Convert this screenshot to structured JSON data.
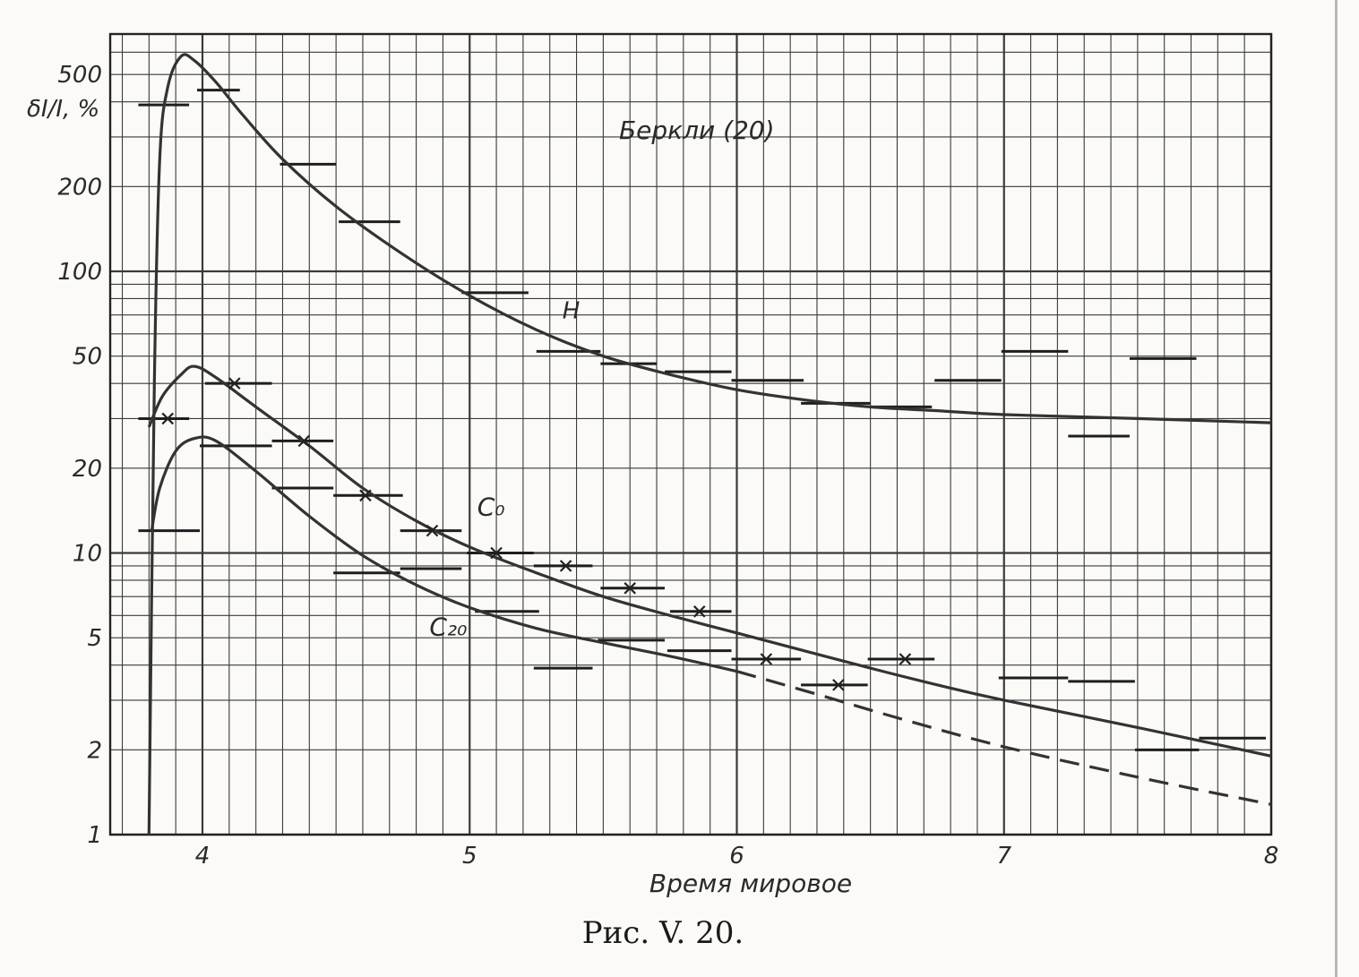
{
  "caption": "Рис. V. 20.",
  "chart_data": {
    "type": "line",
    "title": "",
    "xlabel": "Время мировое",
    "ylabel": "δI/I, %",
    "yscale": "log",
    "xlim": [
      3.68,
      8.0
    ],
    "ylim": [
      1,
      700
    ],
    "grid": true,
    "x_ticks": [
      {
        "v": 4,
        "label": "4"
      },
      {
        "v": 5,
        "label": "5"
      },
      {
        "v": 6,
        "label": "6"
      },
      {
        "v": 7,
        "label": "7"
      },
      {
        "v": 8,
        "label": "8"
      }
    ],
    "y_ticks": [
      {
        "v": 1,
        "label": "1"
      },
      {
        "v": 2,
        "label": "2"
      },
      {
        "v": 5,
        "label": "5"
      },
      {
        "v": 10,
        "label": "10"
      },
      {
        "v": 20,
        "label": "20"
      },
      {
        "v": 50,
        "label": "50"
      },
      {
        "v": 100,
        "label": "100"
      },
      {
        "v": 200,
        "label": "200"
      },
      {
        "v": 500,
        "label": "500"
      }
    ],
    "annotations": [
      {
        "text": "Беркли (20)",
        "x": 5.85,
        "y": 295
      },
      {
        "text": "H",
        "x": 5.38,
        "y": 68
      }
    ],
    "series": [
      {
        "name": "H",
        "label": "H",
        "style": "solid",
        "points": [
          [
            3.8,
            1.0
          ],
          [
            3.82,
            40
          ],
          [
            3.84,
            250
          ],
          [
            3.87,
            450
          ],
          [
            3.92,
            580
          ],
          [
            3.97,
            560
          ],
          [
            4.05,
            470
          ],
          [
            4.15,
            360
          ],
          [
            4.3,
            250
          ],
          [
            4.5,
            170
          ],
          [
            4.75,
            115
          ],
          [
            5.0,
            82
          ],
          [
            5.25,
            62
          ],
          [
            5.5,
            50
          ],
          [
            5.75,
            43
          ],
          [
            6.0,
            38
          ],
          [
            6.25,
            35
          ],
          [
            6.5,
            33
          ],
          [
            6.75,
            32
          ],
          [
            7.0,
            31
          ],
          [
            7.5,
            30
          ],
          [
            8.0,
            29
          ]
        ],
        "steps": [
          [
            3.76,
            3.95,
            390
          ],
          [
            3.98,
            4.14,
            440
          ],
          [
            4.29,
            4.5,
            240
          ],
          [
            4.51,
            4.74,
            150
          ],
          [
            4.97,
            5.22,
            84
          ],
          [
            5.25,
            5.49,
            52
          ],
          [
            5.49,
            5.7,
            47
          ],
          [
            5.73,
            5.98,
            44
          ],
          [
            5.98,
            6.25,
            41
          ],
          [
            6.24,
            6.5,
            34
          ],
          [
            6.5,
            6.73,
            33
          ],
          [
            6.74,
            6.99,
            41
          ],
          [
            6.99,
            7.24,
            52
          ],
          [
            7.24,
            7.47,
            26
          ],
          [
            7.47,
            7.72,
            49
          ]
        ]
      },
      {
        "name": "C0",
        "label": "C₀",
        "style": "solid",
        "points": [
          [
            3.8,
            28
          ],
          [
            3.85,
            36
          ],
          [
            3.92,
            43
          ],
          [
            3.97,
            46
          ],
          [
            4.05,
            42
          ],
          [
            4.2,
            33
          ],
          [
            4.4,
            24
          ],
          [
            4.6,
            17
          ],
          [
            4.8,
            13
          ],
          [
            5.0,
            10.5
          ],
          [
            5.25,
            8.5
          ],
          [
            5.5,
            7.0
          ],
          [
            5.75,
            6.0
          ],
          [
            6.0,
            5.2
          ],
          [
            6.25,
            4.5
          ],
          [
            6.5,
            3.9
          ],
          [
            6.75,
            3.4
          ],
          [
            7.0,
            3.0
          ],
          [
            7.5,
            2.4
          ],
          [
            8.0,
            1.9
          ]
        ],
        "markers": [
          [
            3.87,
            30
          ],
          [
            4.12,
            40
          ],
          [
            4.38,
            25
          ],
          [
            4.61,
            16
          ],
          [
            4.86,
            12
          ],
          [
            5.1,
            10
          ],
          [
            5.36,
            9
          ],
          [
            5.6,
            7.5
          ],
          [
            5.86,
            6.2
          ],
          [
            6.11,
            4.2
          ],
          [
            6.38,
            3.4
          ],
          [
            6.63,
            4.2
          ]
        ],
        "steps": [
          [
            3.76,
            3.95,
            30
          ],
          [
            4.01,
            4.26,
            40
          ],
          [
            4.26,
            4.49,
            25
          ],
          [
            4.49,
            4.75,
            16
          ],
          [
            4.74,
            4.97,
            12
          ],
          [
            4.99,
            5.24,
            10
          ],
          [
            5.24,
            5.46,
            9
          ],
          [
            5.49,
            5.73,
            7.5
          ],
          [
            5.75,
            5.98,
            6.2
          ],
          [
            5.98,
            6.24,
            4.2
          ],
          [
            6.24,
            6.49,
            3.4
          ],
          [
            6.49,
            6.74,
            4.2
          ]
        ]
      },
      {
        "name": "C20",
        "label": "C₂₀",
        "style": "solid",
        "points": [
          [
            3.81,
            12
          ],
          [
            3.84,
            17
          ],
          [
            3.9,
            23
          ],
          [
            3.97,
            25.5
          ],
          [
            4.05,
            25
          ],
          [
            4.2,
            19.5
          ],
          [
            4.4,
            13.5
          ],
          [
            4.6,
            9.8
          ],
          [
            4.8,
            7.7
          ],
          [
            5.0,
            6.4
          ],
          [
            5.25,
            5.4
          ],
          [
            5.5,
            4.8
          ],
          [
            5.75,
            4.3
          ],
          [
            6.0,
            3.8
          ]
        ],
        "markers": [],
        "steps": [
          [
            3.76,
            3.99,
            12
          ],
          [
            3.99,
            4.26,
            24
          ],
          [
            4.26,
            4.49,
            17
          ],
          [
            4.49,
            4.74,
            8.5
          ],
          [
            4.74,
            4.97,
            8.8
          ],
          [
            5.02,
            5.26,
            6.2
          ],
          [
            5.24,
            5.46,
            3.9
          ],
          [
            5.48,
            5.73,
            4.9
          ],
          [
            5.74,
            5.98,
            4.5
          ],
          [
            6.98,
            7.24,
            3.6
          ],
          [
            7.24,
            7.49,
            3.5
          ],
          [
            7.49,
            7.73,
            2.0
          ],
          [
            7.73,
            7.98,
            2.2
          ]
        ]
      },
      {
        "name": "C20 extrapolated",
        "label": "",
        "style": "dashed",
        "points": [
          [
            6.0,
            3.8
          ],
          [
            6.3,
            3.15
          ],
          [
            6.6,
            2.6
          ],
          [
            7.0,
            2.05
          ],
          [
            7.5,
            1.6
          ],
          [
            8.0,
            1.28
          ]
        ]
      }
    ]
  }
}
